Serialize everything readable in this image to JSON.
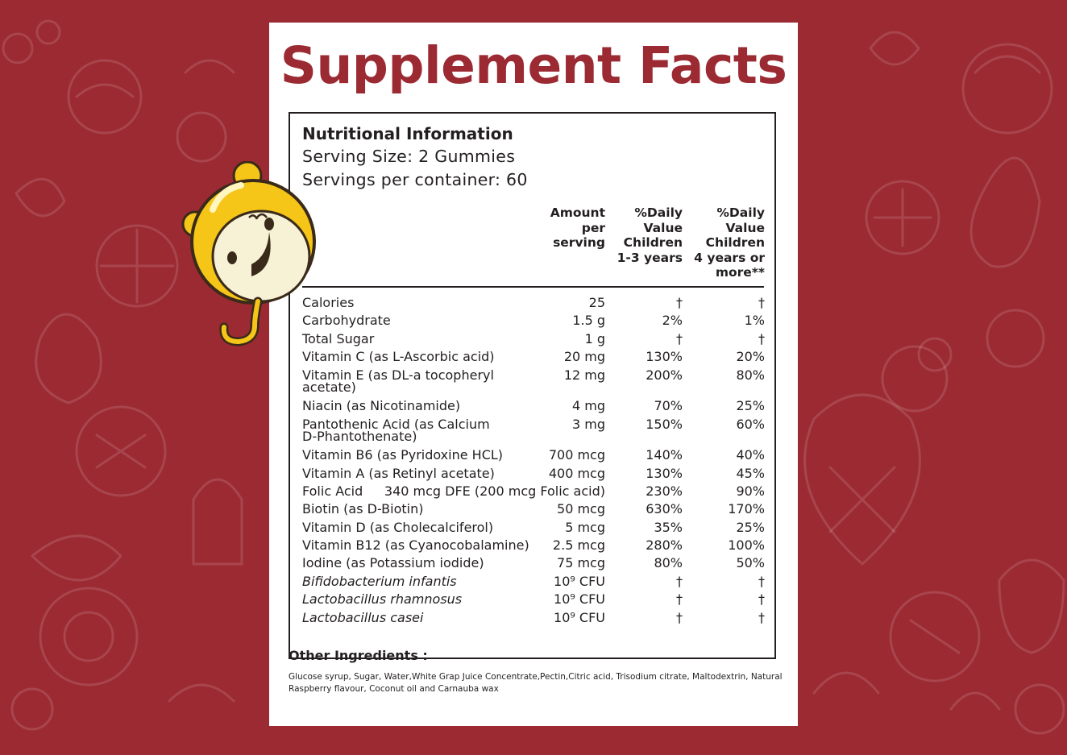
{
  "page": {
    "colors": {
      "background": "#9b2a33",
      "card": "#ffffff",
      "title": "#9b2a33",
      "text": "#231f20",
      "mascot_yellow": "#f5c518"
    }
  },
  "title": "Supplement Facts",
  "info": {
    "heading": "Nutritional Information",
    "serving_size": "Serving Size: 2 Gummies",
    "servings_per_container": "Servings per container: 60"
  },
  "table": {
    "headers": {
      "amount": "Amount\nper\nserving",
      "dv_children_1_3": "%Daily\nValue\nChildren\n1-3 years",
      "dv_children_4": "%Daily\nValue\nChildren\n4 years or\nmore**"
    },
    "rows": [
      {
        "name": "Calories",
        "amount": "25",
        "dv1": "†",
        "dv2": "†"
      },
      {
        "name": "Carbohydrate",
        "amount": "1.5 g",
        "dv1": "2%",
        "dv2": "1%"
      },
      {
        "name": "Total Sugar",
        "amount": "1 g",
        "dv1": "†",
        "dv2": "†"
      },
      {
        "name": "Vitamin C (as L-Ascorbic acid)",
        "amount": "20 mg",
        "dv1": "130%",
        "dv2": "20%"
      },
      {
        "name": "Vitamin E (as DL-a tocopheryl acetate)",
        "amount": "12 mg",
        "dv1": "200%",
        "dv2": "80%",
        "two_line": true
      },
      {
        "name": "Niacin (as Nicotinamide)",
        "amount": "4 mg",
        "dv1": "70%",
        "dv2": "25%"
      },
      {
        "name": "Pantothenic Acid (as Calcium D-Phantothenate)",
        "amount": "3 mg",
        "dv1": "150%",
        "dv2": "60%",
        "two_line": true
      },
      {
        "name": "Vitamin B6 (as Pyridoxine HCL)",
        "amount": "700 mcg",
        "dv1": "140%",
        "dv2": "40%"
      },
      {
        "name": "Vitamin A (as Retinyl acetate)",
        "amount": "400 mcg",
        "dv1": "130%",
        "dv2": "45%"
      },
      {
        "name": "Folic Acid",
        "amount": "340 mcg DFE (200 mcg Folic acid)",
        "dv1": "230%",
        "dv2": "90%"
      },
      {
        "name": "Biotin (as D-Biotin)",
        "amount": "50 mcg",
        "dv1": "630%",
        "dv2": "170%"
      },
      {
        "name": "Vitamin D (as Cholecalciferol)",
        "amount": "5 mcg",
        "dv1": "35%",
        "dv2": "25%"
      },
      {
        "name": "Vitamin B12 (as Cyanocobalamine)",
        "amount": "2.5 mcg",
        "dv1": "280%",
        "dv2": "100%"
      },
      {
        "name": "Iodine (as Potassium iodide)",
        "amount": "75 mcg",
        "dv1": "80%",
        "dv2": "50%"
      },
      {
        "name": "Bifidobacterium infantis",
        "amount": "10⁹ CFU",
        "dv1": "†",
        "dv2": "†",
        "italic": true
      },
      {
        "name": "Lactobacillus rhamnosus",
        "amount": "10⁹ CFU",
        "dv1": "†",
        "dv2": "†",
        "italic": true
      },
      {
        "name": "Lactobacillus casei",
        "amount": "10⁹ CFU",
        "dv1": "†",
        "dv2": "†",
        "italic": true
      }
    ]
  },
  "other_ingredients": {
    "label": "Other Ingredients :",
    "text": "Glucose syrup, Sugar, Water,White Grap Juice Concentrate,Pectin,Citric acid, Trisodium citrate, Maltodextrin, Natural Raspberry flavour, Coconut oil and Carnauba wax"
  },
  "icons": [
    "fruit-pattern-background",
    "mascot-gummy-character"
  ]
}
